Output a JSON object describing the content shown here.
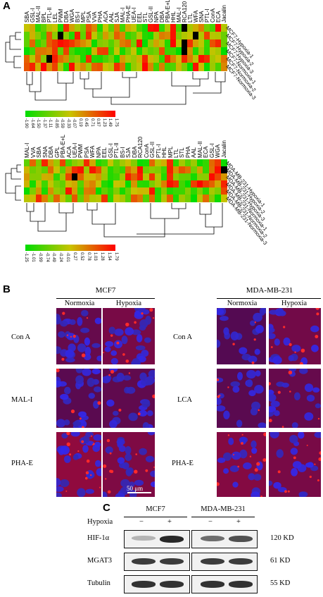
{
  "panels": {
    "a": "A",
    "b": "B",
    "c": "C"
  },
  "colors": {
    "low": "#00dd00",
    "mid": "#c9c300",
    "high": "#ff0000",
    "missing": "#000000"
  },
  "heatmap_top": {
    "columns": [
      "SBA",
      "GSL-I",
      "MAL-II",
      "BPL",
      "PTL-II",
      "LEL",
      "PWM",
      "DBA",
      "WGA",
      "BS-I",
      "MPL",
      "PSA",
      "VVA",
      "PHA",
      "ACA",
      "AAL",
      "SJA",
      "MAL-I",
      "PHA-E",
      "UEA-I",
      "EEL",
      "STL",
      "GSL-II",
      "NPA",
      "DBA",
      "PBA-E+L",
      "HHL",
      "MAL-I",
      "RCA120",
      "LTL",
      "WFA",
      "SNA",
      "PTL-I",
      "ConA",
      "ECA",
      "Jacalin"
    ],
    "rows": [
      "MCF7-Hypoxia-1",
      "MCF7-Hypoxia-2",
      "MCF7-Hypoxia-3",
      "MCF7-Normoxia-1",
      "MCF7-Normoxia-2",
      "MCF7-Normoxia-3"
    ],
    "scale_ticks": [
      "-1.90",
      "-1.64",
      "-1.50",
      "-1.37",
      "-1.11",
      "-0.85",
      "-0.59",
      "-0.33",
      "-0.07",
      "0.19",
      "0.45",
      "0.71",
      "0.97",
      "1.23",
      "1.49",
      "1.75"
    ]
  },
  "heatmap_bottom": {
    "columns": [
      "MAL-I",
      "VVA",
      "SBA",
      "SNA",
      "DBA",
      "GPL",
      "PBA-E+L",
      "ACA",
      "UEA-I",
      "PWM",
      "PSA",
      "WFA",
      "NPA",
      "EEL",
      "GSL-I",
      "PTL-II",
      "BS-I",
      "SJA",
      "DBA",
      "RCA120",
      "ConA",
      "GSL-II",
      "PTL-I",
      "HHL",
      "MPL",
      "LTL",
      "STL",
      "PHA",
      "AAL",
      "MAL-II",
      "ECA",
      "GSL-I",
      "WGA",
      "Jacalin"
    ],
    "rows": [
      "MDA-MB-231-Hypoxia-1",
      "MDA-MB-231-Hypoxia-2",
      "MDA-MB-231-Hypoxia-3",
      "MDA-MB-231-Normoxia-1",
      "MDA-MB-231-Normoxia-2",
      "MDA-MB-231-Normoxia-3"
    ],
    "scale_ticks": [
      "-1.25",
      "-1.01",
      "-0.99",
      "-0.74",
      "-0.49",
      "-0.24",
      "-0.01",
      "0.27",
      "0.52",
      "0.78",
      "1.03",
      "1.28",
      "1.54",
      "1.79"
    ]
  },
  "panel_b": {
    "left": {
      "title": "MCF7",
      "conditions": [
        "Normoxia",
        "Hypoxia"
      ],
      "lectins": [
        "Con A",
        "MAL-I",
        "PHA-E"
      ]
    },
    "right": {
      "title": "MDA-MB-231",
      "conditions": [
        "Normoxia",
        "Hypoxia"
      ],
      "lectins": [
        "Con A",
        "LCA",
        "PHA-E"
      ]
    },
    "scalebar": "50 μm"
  },
  "panel_c": {
    "groups": [
      "MCF7",
      "MDA-MB-231"
    ],
    "treatment_label": "Hypoxia",
    "treatments": [
      "−",
      "+",
      "−",
      "+"
    ],
    "proteins": [
      {
        "name": "HIF-1α",
        "size": "120 KD",
        "intensity": [
          0.25,
          0.95,
          0.6,
          0.75
        ]
      },
      {
        "name": "MGAT3",
        "size": "61 KD",
        "intensity": [
          0.85,
          0.85,
          0.85,
          0.85
        ]
      },
      {
        "name": "Tubulin",
        "size": "55 KD",
        "intensity": [
          0.9,
          0.9,
          0.9,
          0.9
        ]
      }
    ]
  }
}
